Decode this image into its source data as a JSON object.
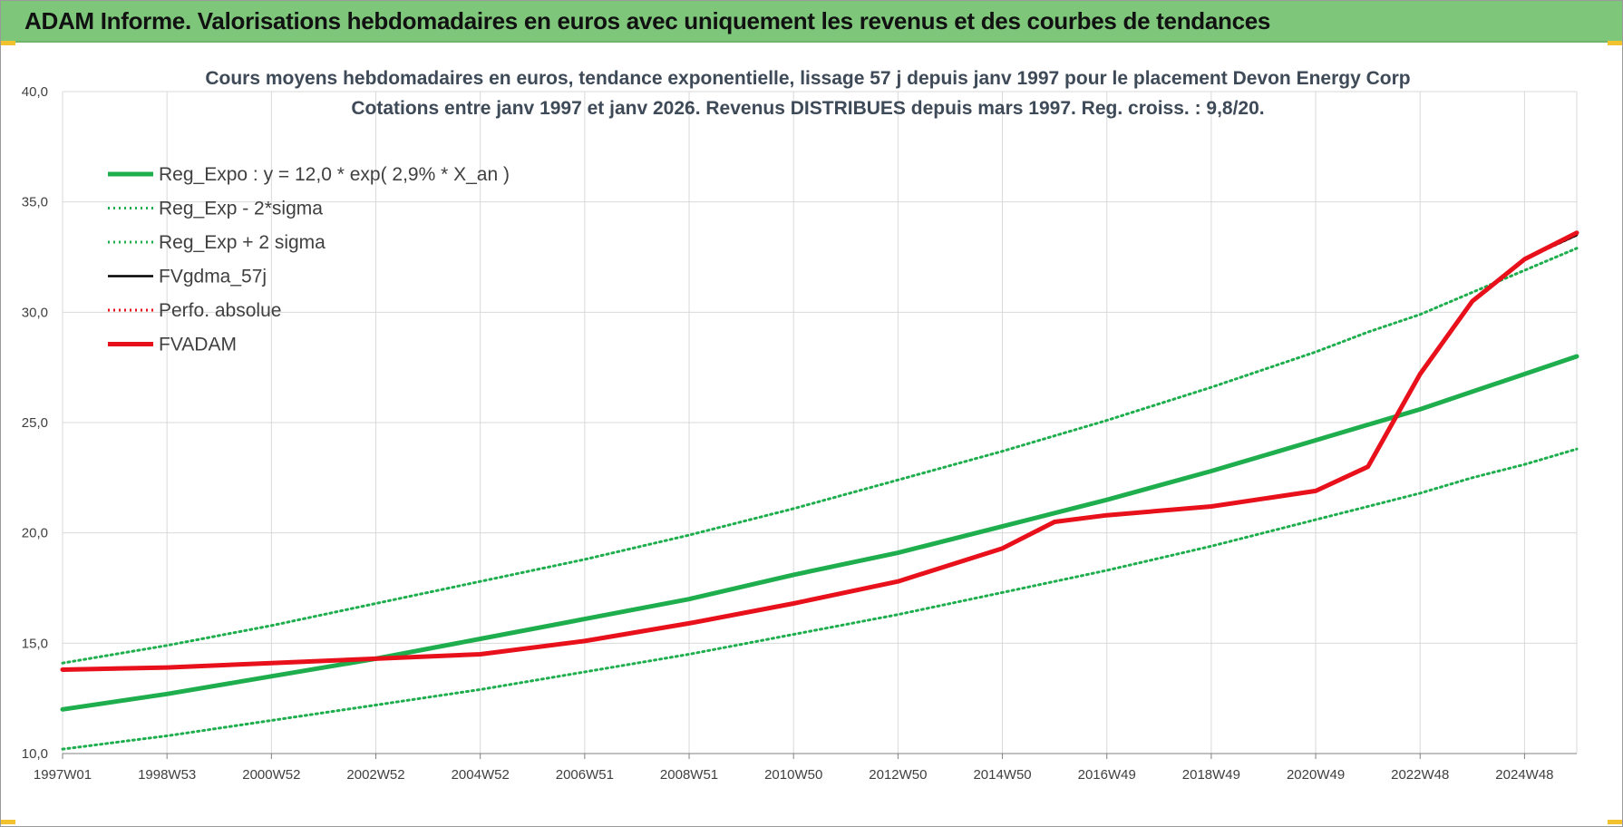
{
  "banner": {
    "title": "ADAM Informe. Valorisations hebdomadaires en euros avec uniquement les revenus et des courbes de tendances"
  },
  "colors": {
    "banner_bg": "#7dc67a",
    "trend_green": "#1fae4e",
    "adam_red": "#e8101a",
    "gdma_black": "#000000",
    "grid": "#d9d9d9"
  },
  "chart_data": {
    "type": "line",
    "title": "Cours moyens hebdomadaires en euros, tendance exponentielle, lissage 57 j depuis janv 1997 pour le placement Devon Energy Corp",
    "subtitle": "Cotations entre janv 1997 et janv 2026. Revenus DISTRIBUES depuis mars 1997.  Reg. croiss. : 9,8/20.",
    "xlabel": "",
    "ylabel": "",
    "x_range": [
      "1997-01",
      "2026-01"
    ],
    "ylim": [
      10,
      40
    ],
    "yticks": [
      "10,0",
      "15,0",
      "20,0",
      "25,0",
      "30,0",
      "35,0",
      "40,0"
    ],
    "xticks": [
      "1997W01",
      "1998W53",
      "2000W52",
      "2002W52",
      "2004W52",
      "2006W51",
      "2008W51",
      "2010W50",
      "2012W50",
      "2014W50",
      "2016W49",
      "2018W49",
      "2020W49",
      "2022W48",
      "2024W48"
    ],
    "grid": true,
    "legend_position": "top-left",
    "x_years": [
      1997,
      1999,
      2001,
      2003,
      2005,
      2007,
      2009,
      2011,
      2013,
      2015,
      2016,
      2017,
      2019,
      2021,
      2022,
      2023,
      2024,
      2025,
      2026
    ],
    "series": [
      {
        "name": "Reg_Expo : y = 12,0 * exp( 2,9% *  X_an )",
        "style": "solid-thick",
        "color": "#1fae4e",
        "values": [
          12.0,
          12.7,
          13.5,
          14.3,
          15.2,
          16.1,
          17.0,
          18.1,
          19.1,
          20.3,
          20.9,
          21.5,
          22.8,
          24.2,
          24.9,
          25.6,
          26.4,
          27.2,
          28.0
        ]
      },
      {
        "name": "Reg_Exp - 2*sigma",
        "style": "dotted",
        "color": "#1fae4e",
        "values": [
          10.2,
          10.8,
          11.5,
          12.2,
          12.9,
          13.7,
          14.5,
          15.4,
          16.3,
          17.3,
          17.8,
          18.3,
          19.4,
          20.6,
          21.2,
          21.8,
          22.5,
          23.1,
          23.8
        ]
      },
      {
        "name": "Reg_Exp + 2 sigma",
        "style": "dotted",
        "color": "#1fae4e",
        "values": [
          14.1,
          14.9,
          15.8,
          16.8,
          17.8,
          18.8,
          19.9,
          21.1,
          22.4,
          23.7,
          24.4,
          25.1,
          26.6,
          28.2,
          29.1,
          29.9,
          30.9,
          31.9,
          32.9
        ]
      },
      {
        "name": "FVgdma_57j",
        "style": "solid",
        "color": "#000000",
        "values": [
          13.8,
          13.9,
          14.1,
          14.3,
          14.5,
          15.1,
          15.9,
          16.8,
          17.8,
          19.3,
          20.5,
          20.8,
          21.2,
          21.9,
          23.0,
          27.2,
          30.5,
          32.4,
          33.5
        ]
      },
      {
        "name": "Perfo. absolue",
        "style": "dotted",
        "color": "#e8101a",
        "values": [
          13.8,
          13.9,
          14.1,
          14.3,
          14.5,
          15.1,
          15.9,
          16.8,
          17.8,
          19.3,
          20.5,
          20.8,
          21.2,
          21.9,
          23.0,
          27.2,
          30.5,
          32.4,
          33.5
        ]
      },
      {
        "name": "FVADAM",
        "style": "solid-thick",
        "color": "#e8101a",
        "values": [
          13.8,
          13.9,
          14.1,
          14.3,
          14.5,
          15.1,
          15.9,
          16.8,
          17.8,
          19.3,
          20.5,
          20.8,
          21.2,
          21.9,
          23.0,
          27.2,
          30.5,
          32.4,
          33.6
        ]
      }
    ]
  }
}
